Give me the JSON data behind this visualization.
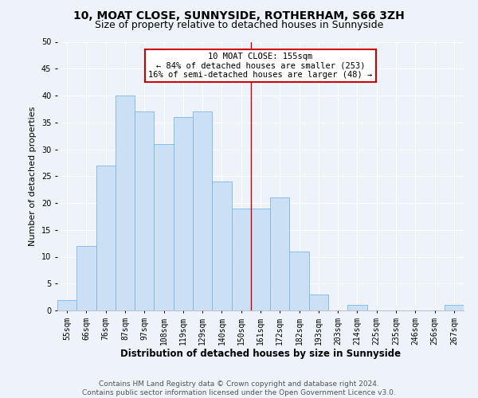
{
  "title": "10, MOAT CLOSE, SUNNYSIDE, ROTHERHAM, S66 3ZH",
  "subtitle": "Size of property relative to detached houses in Sunnyside",
  "xlabel": "Distribution of detached houses by size in Sunnyside",
  "ylabel": "Number of detached properties",
  "bar_values": [
    2,
    12,
    27,
    40,
    37,
    31,
    36,
    37,
    24,
    19,
    19,
    21,
    11,
    3,
    0,
    1,
    0,
    0,
    0,
    0,
    1
  ],
  "bin_labels": [
    "55sqm",
    "66sqm",
    "76sqm",
    "87sqm",
    "97sqm",
    "108sqm",
    "119sqm",
    "129sqm",
    "140sqm",
    "150sqm",
    "161sqm",
    "172sqm",
    "182sqm",
    "193sqm",
    "203sqm",
    "214sqm",
    "225sqm",
    "235sqm",
    "246sqm",
    "256sqm",
    "267sqm"
  ],
  "bar_color": "#cce0f5",
  "bar_edge_color": "#7bb8e8",
  "vline_x_index": 9.5,
  "annotation_line1": "10 MOAT CLOSE: 155sqm",
  "annotation_line2": "← 84% of detached houses are smaller (253)",
  "annotation_line3": "16% of semi-detached houses are larger (48) →",
  "annotation_box_color": "#ffffff",
  "annotation_box_edge_color": "#cc0000",
  "vline_color": "#cc0000",
  "ylim": [
    0,
    50
  ],
  "yticks": [
    0,
    5,
    10,
    15,
    20,
    25,
    30,
    35,
    40,
    45,
    50
  ],
  "footer_text": "Contains HM Land Registry data © Crown copyright and database right 2024.\nContains public sector information licensed under the Open Government Licence v3.0.",
  "bg_color": "#eef2fa",
  "grid_color": "#ffffff",
  "title_fontsize": 10,
  "subtitle_fontsize": 9,
  "xlabel_fontsize": 8.5,
  "ylabel_fontsize": 8,
  "tick_fontsize": 7,
  "annotation_fontsize": 7.5,
  "footer_fontsize": 6.5
}
